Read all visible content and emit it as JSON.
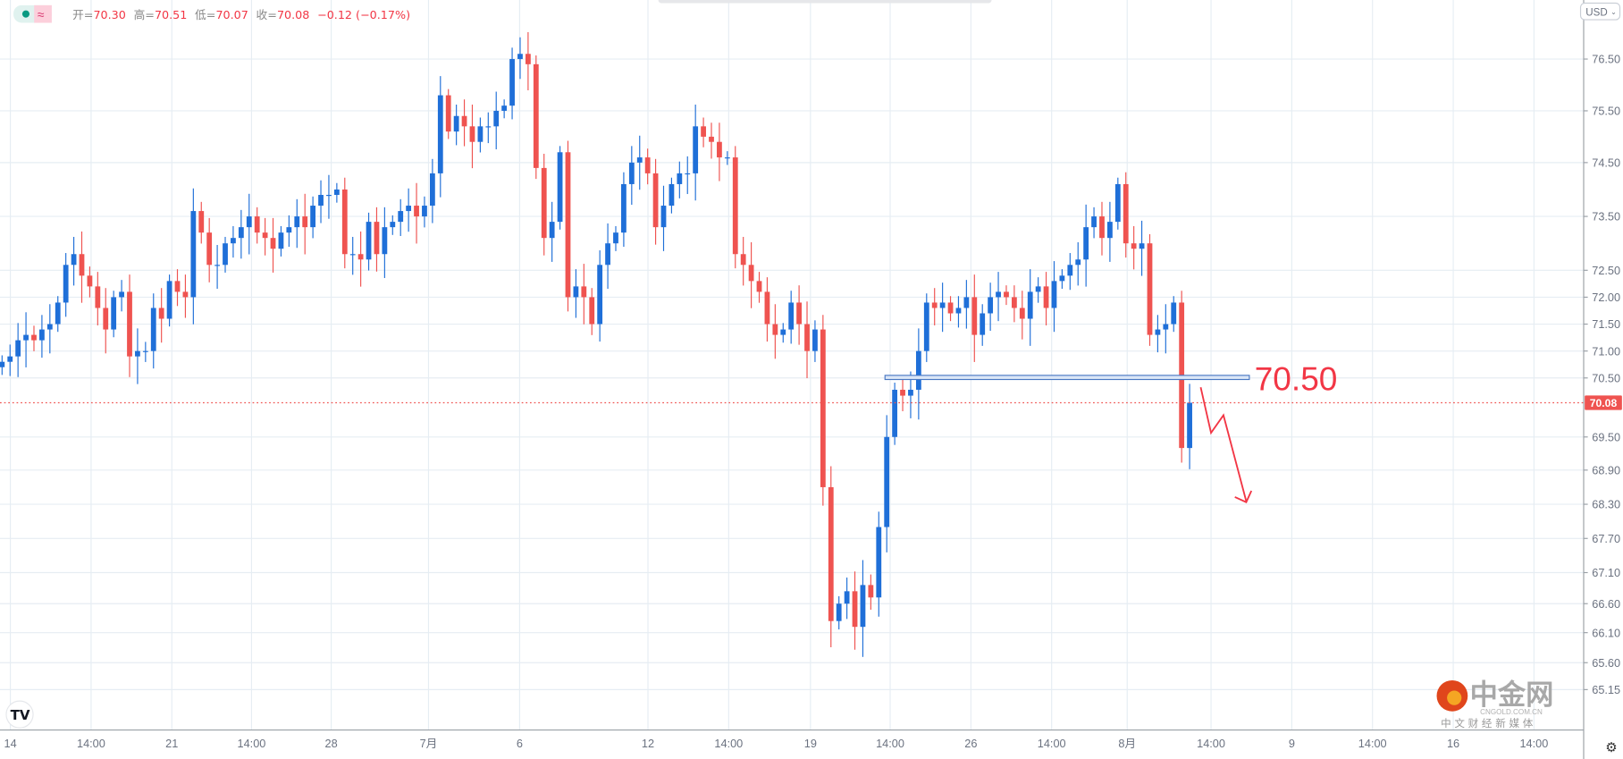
{
  "legend": {
    "open_label": "开=",
    "open": "70.30",
    "high_label": "高=",
    "high": "70.51",
    "low_label": "低=",
    "low": "70.07",
    "close_label": "收=",
    "close": "70.08",
    "change": "−0.12 (−0.17%)"
  },
  "currency_selector": "USD",
  "watermark": {
    "brand": "中金网",
    "domain": "CNGOLD.COM.CN",
    "slogan": "中 文 财 经 新 媒 体"
  },
  "annotation": {
    "level_label": "70.50"
  },
  "colors": {
    "up": "#1f6fd8",
    "down": "#ef5350",
    "grid": "#e6edf3",
    "annotation": "#f23645"
  },
  "chart_data": {
    "type": "candlestick",
    "title": "",
    "y_ticks": [
      "76.50",
      "75.50",
      "74.50",
      "73.50",
      "72.50",
      "72.00",
      "71.50",
      "71.00",
      "70.50",
      "69.50",
      "68.90",
      "68.30",
      "67.70",
      "67.10",
      "66.60",
      "66.10",
      "65.60",
      "65.15"
    ],
    "x_ticks": [
      "14",
      "14:00",
      "21",
      "14:00",
      "28",
      "7月",
      "6",
      "12",
      "14:00",
      "19",
      "14:00",
      "26",
      "14:00",
      "8月",
      "14:00",
      "9",
      "14:00",
      "16",
      "14:00"
    ],
    "last_price": "70.08",
    "horizontal_level": 70.5,
    "first_open": 70.7,
    "close": [
      70.8,
      70.9,
      71.2,
      71.3,
      71.2,
      71.4,
      71.5,
      71.9,
      72.6,
      72.8,
      72.4,
      72.2,
      71.8,
      71.4,
      72.0,
      72.1,
      70.9,
      71.0,
      71.0,
      71.8,
      71.6,
      72.3,
      72.1,
      72.0,
      73.6,
      73.2,
      72.6,
      72.6,
      73.0,
      73.1,
      73.3,
      73.5,
      73.2,
      73.1,
      72.9,
      73.2,
      73.3,
      73.5,
      73.3,
      73.7,
      73.9,
      73.9,
      74.0,
      72.8,
      72.8,
      72.7,
      73.4,
      72.8,
      73.3,
      73.4,
      73.6,
      73.7,
      73.5,
      73.7,
      74.3,
      75.8,
      75.1,
      75.4,
      75.2,
      74.9,
      75.2,
      75.2,
      75.5,
      75.6,
      76.5,
      76.6,
      76.4,
      74.4,
      73.1,
      73.4,
      74.7,
      72.0,
      72.2,
      72.0,
      71.5,
      72.6,
      73.0,
      73.2,
      74.1,
      74.5,
      74.6,
      74.3,
      73.3,
      73.7,
      74.1,
      74.3,
      74.3,
      75.2,
      75.0,
      74.9,
      74.6,
      74.6,
      72.8,
      72.6,
      72.3,
      72.1,
      71.5,
      71.3,
      71.4,
      71.9,
      71.5,
      71.0,
      71.4,
      68.6,
      66.3,
      66.6,
      66.8,
      66.2,
      66.9,
      66.7,
      67.9,
      69.5,
      70.3,
      70.2,
      70.3,
      71.0,
      71.9,
      71.8,
      71.9,
      71.7,
      71.8,
      72.0,
      71.3,
      71.7,
      72.0,
      72.1,
      72.0,
      71.8,
      71.6,
      72.1,
      72.2,
      71.8,
      72.3,
      72.4,
      72.6,
      72.7,
      73.3,
      73.5,
      73.1,
      73.4,
      74.1,
      73.0,
      72.9,
      73.0,
      71.3,
      71.4,
      71.5,
      71.9,
      69.3,
      70.08
    ]
  }
}
